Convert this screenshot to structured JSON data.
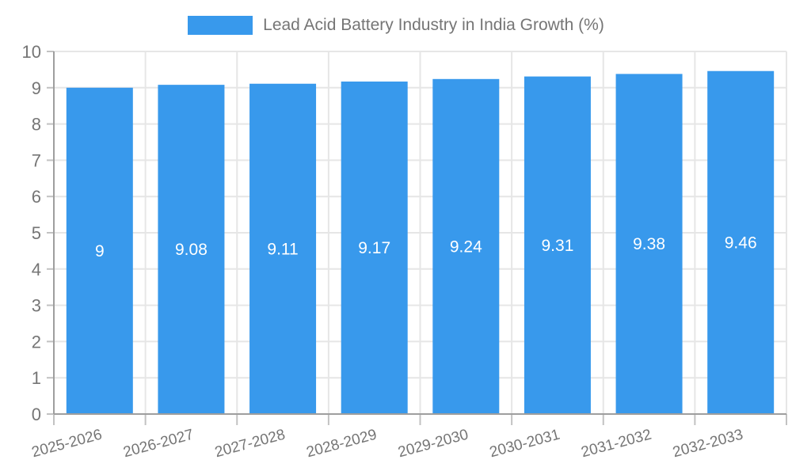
{
  "chart_data": {
    "type": "bar",
    "title": "Lead Acid Battery Industry in India Growth (%)",
    "categories": [
      "2025-2026",
      "2026-2027",
      "2027-2028",
      "2028-2029",
      "2029-2030",
      "2030-2031",
      "2031-2032",
      "2032-2033"
    ],
    "values": [
      9,
      9.08,
      9.11,
      9.17,
      9.24,
      9.31,
      9.38,
      9.46
    ],
    "value_labels": [
      "9",
      "9.08",
      "9.11",
      "9.17",
      "9.24",
      "9.31",
      "9.38",
      "9.46"
    ],
    "xlabel": "",
    "ylabel": "",
    "ylim": [
      0,
      10
    ],
    "yticks": [
      0,
      1,
      2,
      3,
      4,
      5,
      6,
      7,
      8,
      9,
      10
    ],
    "grid": true,
    "legend_position": "top-center",
    "legend_entries": [
      "Lead Acid Battery Industry in India Growth (%)"
    ],
    "colors": {
      "bar": "#3899ec",
      "grid": "#e6e6e6",
      "axis": "#9e9e9e",
      "tick": "#c2c2c2",
      "label_text": "#757575",
      "value_text": "#ffffff",
      "background": "#ffffff"
    }
  }
}
